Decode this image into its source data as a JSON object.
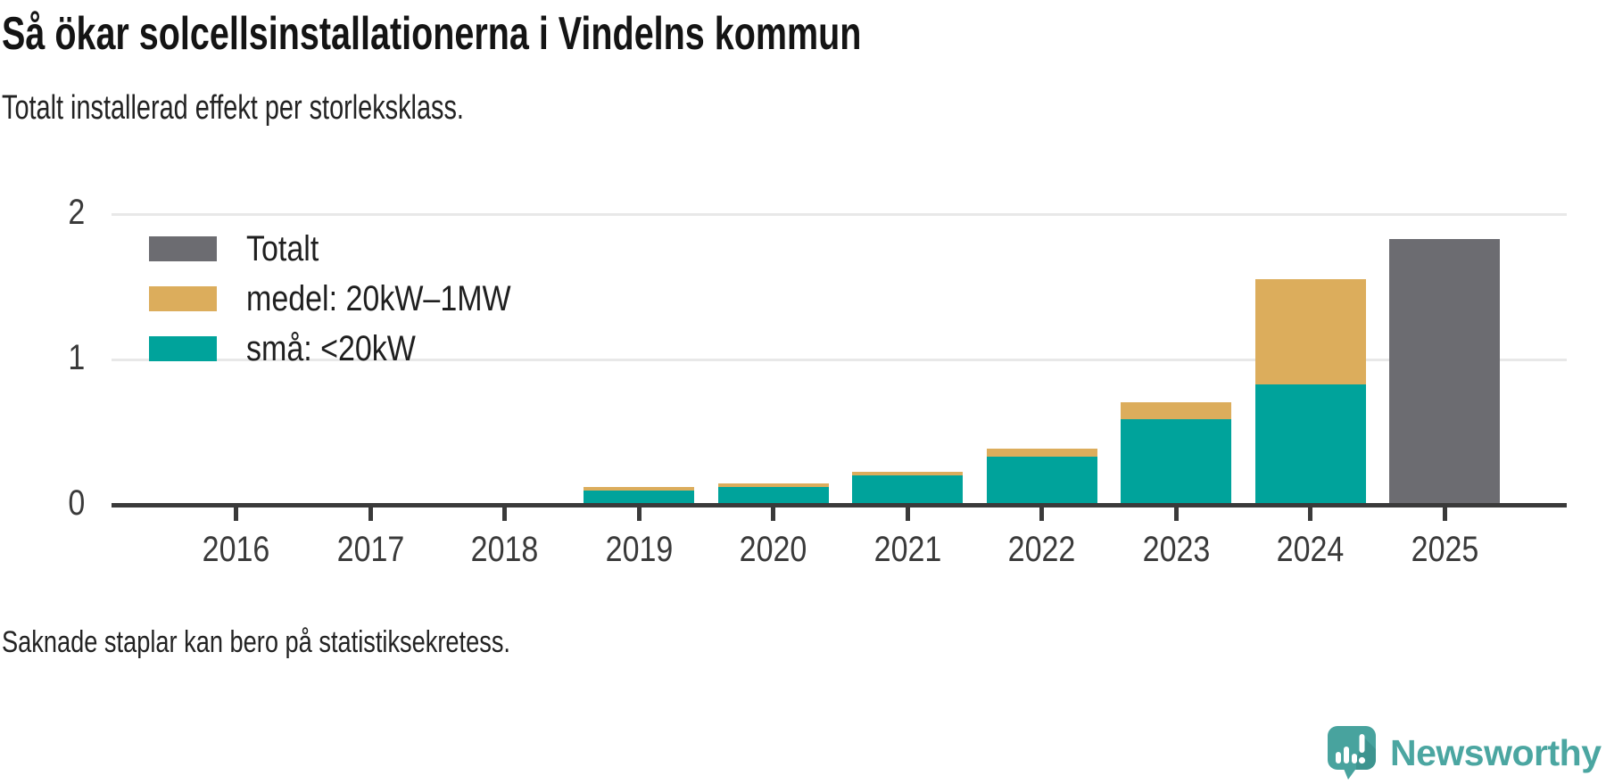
{
  "chart_data": {
    "type": "bar",
    "stacked": true,
    "title": "Så ökar solcellsinstallationerna i Vindelns kommun",
    "subtitle": "Totalt installerad effekt per storleksklass.",
    "footnote": "Saknade staplar kan bero på statistiksekretess.",
    "categories": [
      "2016",
      "2017",
      "2018",
      "2019",
      "2020",
      "2021",
      "2022",
      "2023",
      "2024",
      "2025"
    ],
    "series": [
      {
        "name": "Totalt",
        "color": "#6c6c71",
        "values": [
          null,
          null,
          null,
          null,
          null,
          null,
          null,
          null,
          null,
          1.83
        ]
      },
      {
        "name": "medel: 20kW–1MW",
        "color": "#dcad5c",
        "values": [
          null,
          null,
          null,
          0.02,
          0.025,
          0.025,
          0.055,
          0.115,
          0.72,
          null
        ]
      },
      {
        "name": "små: <20kW",
        "color": "#00a39b",
        "values": [
          null,
          null,
          null,
          0.1,
          0.12,
          0.2,
          0.33,
          0.59,
          0.83,
          null
        ]
      }
    ],
    "ylim": [
      0,
      2
    ],
    "yticks": [
      0,
      1,
      2
    ],
    "grid": "horizontal",
    "legend_position": "top-left"
  },
  "colors": {
    "background": "#ffffff",
    "axis": "#3a3a3a",
    "gridline": "#e8e8e8",
    "text": "#232323",
    "logo_teal": "#4ba6a1"
  },
  "logo": {
    "text": "Newsworthy",
    "icon": "newsworthy-speech-bubble-bar-chart-icon"
  }
}
